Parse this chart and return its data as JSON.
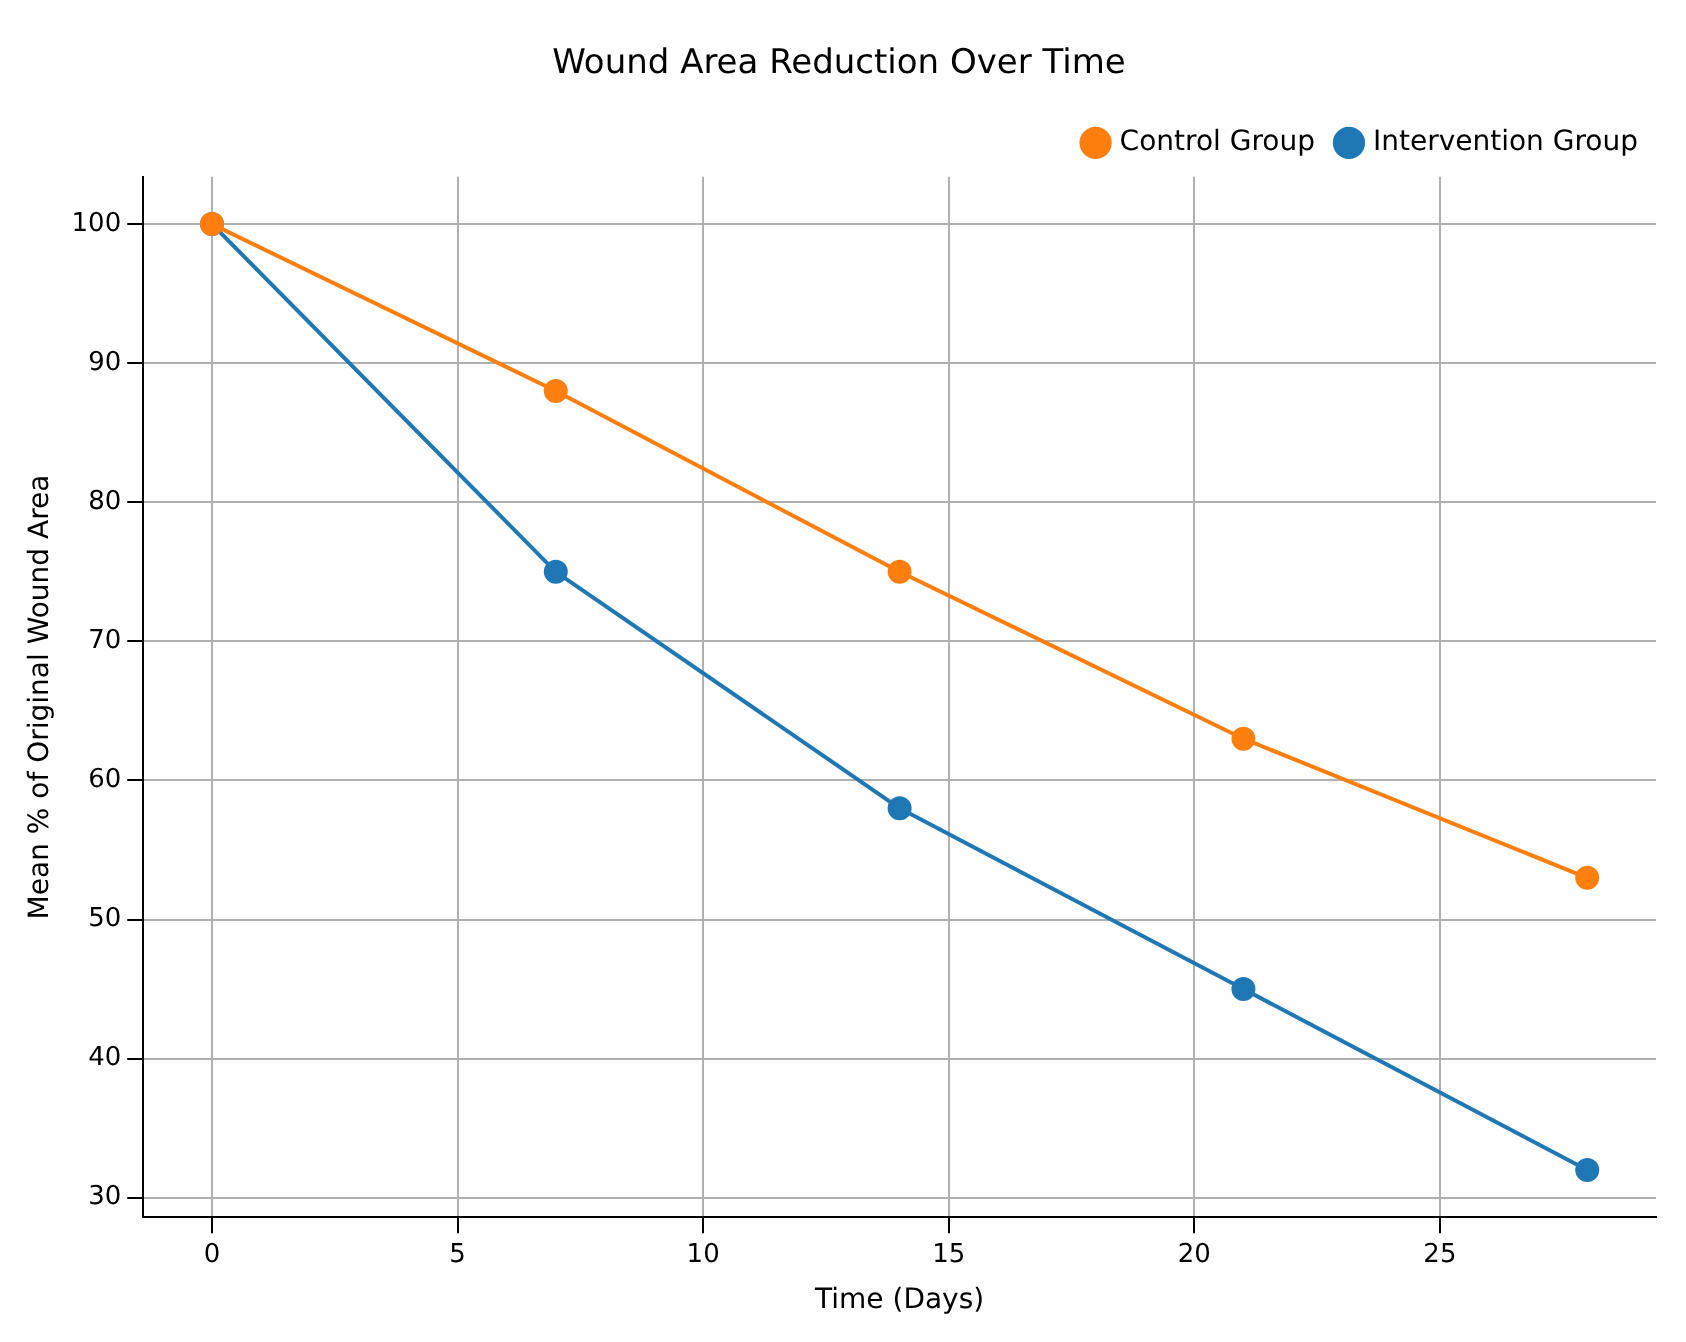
{
  "chart_data": {
    "type": "line",
    "title": "Wound Area Reduction Over Time",
    "xlabel": "Time (Days)",
    "ylabel": "Mean % of Original Wound Area",
    "x": [
      0,
      7,
      14,
      21,
      28
    ],
    "series": [
      {
        "name": "Intervention Group",
        "color": "#1f77b4",
        "values": [
          100,
          75,
          58,
          45,
          32
        ]
      },
      {
        "name": "Control Group",
        "color": "#ff7f0e",
        "values": [
          100,
          88,
          75,
          63,
          53
        ]
      }
    ],
    "xlim": [
      -1.4,
      29.4
    ],
    "xticks": [
      0,
      5,
      10,
      15,
      20,
      25
    ],
    "ylim": [
      28.6,
      103.4
    ],
    "yticks": [
      30,
      40,
      50,
      60,
      70,
      80,
      90,
      100
    ],
    "grid": true,
    "legend": "top right",
    "marker": "circle",
    "line_style": "solid"
  }
}
